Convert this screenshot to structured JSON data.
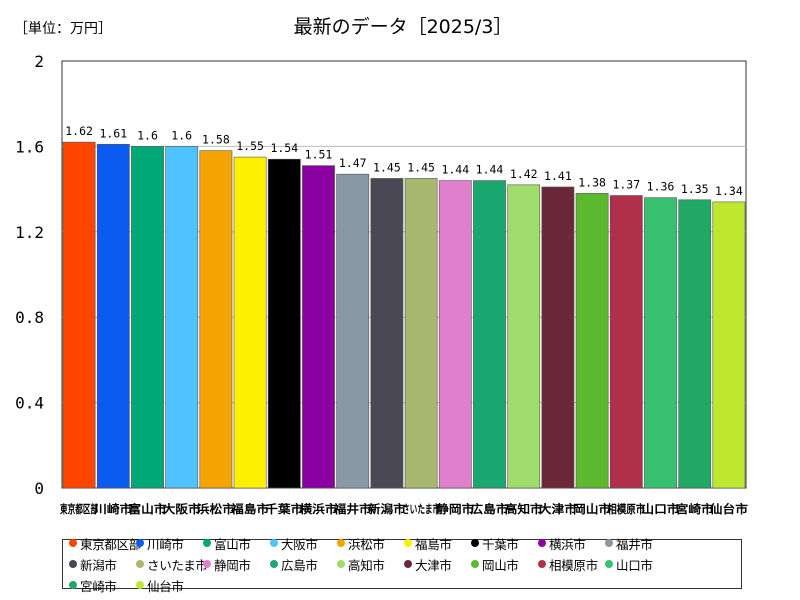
{
  "chart_data": {
    "type": "bar",
    "title": "最新のデータ［2025/3］",
    "unit_label": "［単位：万円］",
    "xlabel": "",
    "ylabel": "万円",
    "ylim": [
      0,
      2
    ],
    "yticks": [
      "0",
      "0.4",
      "0.8",
      "1.2",
      "1.6",
      "2"
    ],
    "yticks_values": [
      0,
      0.4,
      0.8,
      1.2,
      1.6,
      2
    ],
    "categories": [
      "東京都区部",
      "川崎市",
      "富山市",
      "大阪市",
      "浜松市",
      "福島市",
      "千葉市",
      "横浜市",
      "福井市",
      "新潟市",
      "さいたま市",
      "静岡市",
      "広島市",
      "高知市",
      "大津市",
      "岡山市",
      "相模原市",
      "山口市",
      "宮崎市",
      "仙台市"
    ],
    "values": [
      1.62,
      1.61,
      1.6,
      1.6,
      1.58,
      1.55,
      1.54,
      1.51,
      1.47,
      1.45,
      1.45,
      1.44,
      1.44,
      1.42,
      1.41,
      1.38,
      1.37,
      1.36,
      1.35,
      1.34
    ],
    "value_labels": [
      "1.62",
      "1.61",
      "1.6",
      "1.6",
      "1.58",
      "1.55",
      "1.54",
      "1.51",
      "1.47",
      "1.45",
      "1.45",
      "1.44",
      "1.44",
      "1.42",
      "1.41",
      "1.38",
      "1.37",
      "1.36",
      "1.35",
      "1.34"
    ],
    "colors": [
      "#ff4500",
      "#0a5cf0",
      "#00a878",
      "#4ec3ff",
      "#f4a300",
      "#fff000",
      "#000000",
      "#8b00a0",
      "#8898a4",
      "#4b4856",
      "#a8b870",
      "#e080cc",
      "#1aa870",
      "#a0dc6c",
      "#6b2838",
      "#5cb82e",
      "#b0304c",
      "#36c070",
      "#20a864",
      "#bee830"
    ],
    "legend_placement": "bottom",
    "grid": true
  }
}
